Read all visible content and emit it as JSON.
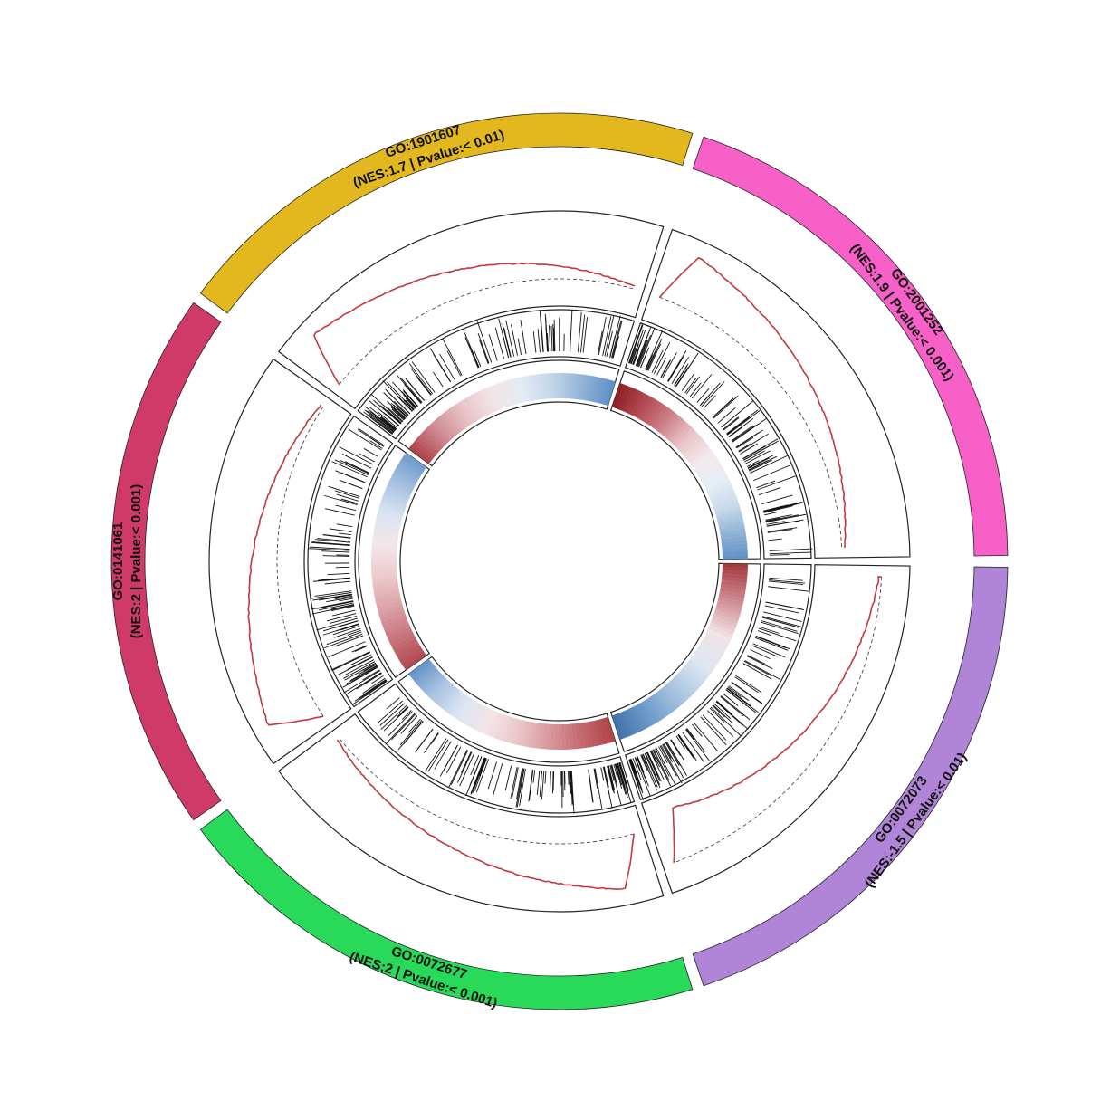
{
  "chart_data": {
    "type": "circos-gsea",
    "gene_sets": [
      {
        "id": "GO:2001252",
        "stats_label": "(NES:1.9 | Pvalue:< 0.001)",
        "nes": 1.9,
        "pvalue": "< 0.001",
        "color": "#f660c7",
        "heatmap_profile": [
          "#8f2026",
          "#b24a52",
          "#cc7e86",
          "#e8c3c7",
          "#f3e9ec",
          "#e6edf6",
          "#c9d9ec",
          "#8fb1d6",
          "#5b8ec4"
        ],
        "es_curve_direction": "up"
      },
      {
        "id": "GO:0072073",
        "stats_label": "(NES:-1.5 | Pvalue:< 0.01)",
        "nes": -1.5,
        "pvalue": "< 0.01",
        "color": "#b084d6",
        "heatmap_profile": [
          "#a63a42",
          "#cf8d94",
          "#f2e4e7",
          "#dbe6f2",
          "#a8c3e1",
          "#6c9acb",
          "#3f6fa8"
        ],
        "es_curve_direction": "down"
      },
      {
        "id": "GO:0072677",
        "stats_label": "(NES:2 | Pvalue:< 0.001)",
        "nes": 2,
        "pvalue": "< 0.001",
        "color": "#29da5a",
        "heatmap_profile": [
          "#b2444b",
          "#c56a71",
          "#d9989d",
          "#e9c6ca",
          "#f4e5e8",
          "#dce6f2",
          "#a7c2e0",
          "#5f8fc5"
        ],
        "es_curve_direction": "up"
      },
      {
        "id": "GO:0141061",
        "stats_label": "(NES:2 | Pvalue:< 0.001)",
        "nes": 2,
        "pvalue": "< 0.001",
        "color": "#cf3a68",
        "heatmap_profile": [
          "#b24a52",
          "#c9777e",
          "#dca4a9",
          "#eccbcf",
          "#f3e6ea",
          "#d9e4f1",
          "#a6c0e0",
          "#6b98ca"
        ],
        "es_curve_direction": "up"
      },
      {
        "id": "GO:1901607",
        "stats_label": "(NES:1.7 | Pvalue:< 0.01)",
        "nes": 1.7,
        "pvalue": "< 0.01",
        "color": "#e3b81e",
        "heatmap_profile": [
          "#b2444b",
          "#cf8d94",
          "#e8c3c7",
          "#f2e4e7",
          "#e3ebf5",
          "#c2d5ea",
          "#8fb1d6",
          "#5b8ec4"
        ],
        "es_curve_direction": "up"
      }
    ],
    "sector_order_clockwise_from_top_right": [
      "GO:2001252",
      "GO:0072073",
      "GO:0072677",
      "GO:0141061",
      "GO:1901607"
    ],
    "tracks": [
      "gene set label band",
      "running enrichment score curve",
      "gene hit barcode",
      "ranked metric heatmap"
    ],
    "colors": {
      "es_curve": "#c0393f",
      "zero_line": "#333333",
      "hit_line": "#111111",
      "track_border": "#222222"
    }
  }
}
